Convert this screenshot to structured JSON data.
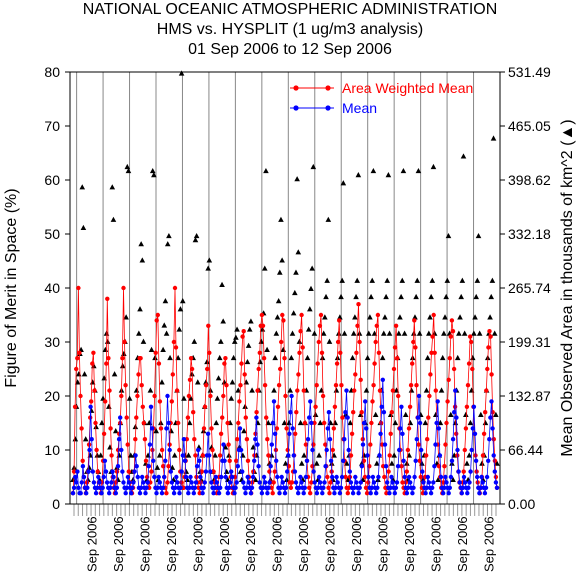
{
  "colors": {
    "awm": "#ff0000",
    "mean": "#0000ff",
    "area": "#000000",
    "grid": "#888888"
  },
  "chart_data": {
    "type": "line",
    "title": [
      "NATIONAL OCEANIC ATMOSPHERIC ADMINISTRATION",
      "HMS vs. HYSPLIT (1 ug/m3 analysis)",
      "01 Sep 2006 to 12 Sep 2006"
    ],
    "ylabel": "Figure of Merit in Space (%)",
    "y2label": "Mean Observed Area in thousands of km^2 (▲)",
    "ylim": [
      0,
      80
    ],
    "yticks": [
      "0",
      "10",
      "20",
      "30",
      "40",
      "50",
      "60",
      "70",
      "80"
    ],
    "y2lim": [
      0,
      531.49
    ],
    "y2ticks": [
      "0.00",
      "66.44",
      "132.87",
      "199.31",
      "265.74",
      "332.18",
      "398.62",
      "465.05",
      "531.49"
    ],
    "xtick_label": "Sep 2006",
    "xtick_count": 16,
    "grid": "vertical lines at day boundaries",
    "legend": {
      "position": "top-right",
      "entries": [
        "Area Weighted Mean",
        "Mean"
      ]
    },
    "series": [
      {
        "name": "Area Weighted Mean",
        "marker": "circle",
        "color": "#ff0000",
        "values": [
          2,
          6,
          18,
          25,
          27,
          40,
          28,
          20,
          14,
          8,
          5,
          3,
          2,
          4,
          6,
          11,
          16,
          19,
          26,
          28,
          21,
          15,
          10,
          6,
          4,
          3,
          2,
          4,
          8,
          13,
          19,
          26,
          38,
          27,
          21,
          14,
          9,
          5,
          3,
          2,
          4,
          6,
          10,
          13,
          15,
          20,
          27,
          40,
          30,
          22,
          16,
          11,
          6,
          4,
          3,
          2,
          3,
          6,
          12,
          16,
          20,
          24,
          27,
          27,
          22,
          18,
          15,
          12,
          8,
          5,
          4,
          3,
          4,
          6,
          10,
          14,
          20,
          28,
          34,
          35,
          26,
          19,
          14,
          10,
          7,
          5,
          3,
          2,
          4,
          7,
          11,
          15,
          19,
          24,
          30,
          40,
          29,
          21,
          15,
          10,
          6,
          4,
          3,
          3,
          5,
          8,
          12,
          16,
          20,
          23,
          27,
          25,
          17,
          12,
          9,
          5,
          4,
          3,
          2,
          4,
          6,
          9,
          14,
          18,
          22,
          25,
          33,
          28,
          20,
          14,
          10,
          6,
          4,
          3,
          2,
          3,
          5,
          9,
          13,
          16,
          20,
          26,
          27,
          22,
          15,
          11,
          8,
          5,
          3,
          2,
          3,
          5,
          8,
          12,
          15,
          19,
          22,
          26,
          31,
          32,
          24,
          16,
          12,
          8,
          5,
          3,
          2,
          4,
          6,
          9,
          13,
          17,
          21,
          25,
          28,
          33,
          35,
          33,
          27,
          22,
          16,
          12,
          9,
          6,
          4,
          3,
          2,
          4,
          6,
          10,
          14,
          18,
          22,
          25,
          30,
          35,
          34,
          27,
          20,
          14,
          10,
          7,
          4,
          3,
          4,
          6,
          9,
          13,
          17,
          21,
          24,
          28,
          32,
          35,
          29,
          21,
          15,
          11,
          8,
          5,
          3,
          2,
          4,
          7,
          11,
          15,
          18,
          22,
          26,
          30,
          33,
          35,
          28,
          20,
          15,
          11,
          7,
          5,
          3,
          2,
          4,
          6,
          10,
          14,
          18,
          22,
          26,
          30,
          34,
          28,
          22,
          16,
          12,
          8,
          5,
          3,
          2,
          3,
          5,
          9,
          13,
          17,
          21,
          24,
          28,
          33,
          37,
          30,
          23,
          17,
          12,
          8,
          5,
          3,
          2,
          4,
          7,
          11,
          15,
          19,
          22,
          26,
          30,
          33,
          35,
          28,
          21,
          15,
          11,
          7,
          5,
          3,
          2,
          3,
          6,
          9,
          13,
          17,
          21,
          25,
          29,
          33,
          27,
          20,
          14,
          10,
          7,
          4,
          3,
          2,
          4,
          6,
          10,
          14,
          18,
          22,
          26,
          30,
          34,
          29,
          22,
          16,
          11,
          8,
          5,
          3,
          2,
          3,
          5,
          9,
          12,
          16,
          20,
          24,
          28,
          31,
          35,
          28,
          21,
          15,
          11,
          7,
          5,
          3,
          2,
          4,
          7,
          11,
          15,
          19,
          23,
          27,
          31,
          34,
          32,
          25,
          18,
          13,
          9,
          6,
          4,
          3,
          2,
          4,
          6,
          10,
          14,
          18,
          22,
          26,
          31,
          30,
          25,
          18,
          13,
          9,
          6,
          4,
          3,
          2,
          3,
          5,
          9,
          13,
          17,
          21,
          25,
          29,
          32,
          31,
          24,
          17,
          12,
          8,
          5,
          3
        ]
      },
      {
        "name": "Mean",
        "marker": "circle",
        "color": "#0000ff",
        "values": [
          2,
          3,
          5,
          4,
          6,
          3,
          2,
          2,
          4,
          7,
          5,
          3,
          2,
          3,
          6,
          10,
          18,
          12,
          6,
          4,
          3,
          2,
          3,
          5,
          4,
          3,
          2,
          3,
          5,
          8,
          6,
          4,
          3,
          2,
          3,
          4,
          6,
          5,
          3,
          2,
          3,
          7,
          12,
          16,
          10,
          6,
          4,
          3,
          2,
          3,
          5,
          4,
          3,
          2,
          3,
          4,
          6,
          9,
          7,
          5,
          3,
          2,
          3,
          5,
          4,
          3,
          2,
          3,
          4,
          7,
          11,
          18,
          14,
          8,
          5,
          3,
          2,
          3,
          5,
          4,
          3,
          2,
          3,
          5,
          8,
          14,
          20,
          15,
          10,
          6,
          4,
          3,
          2,
          3,
          5,
          4,
          3,
          2,
          3,
          6,
          9,
          12,
          8,
          5,
          3,
          2,
          3,
          5,
          4,
          3,
          2,
          3,
          4,
          7,
          10,
          8,
          5,
          3,
          2,
          3,
          4,
          6,
          9,
          13,
          9,
          6,
          4,
          3,
          2,
          3,
          5,
          4,
          3,
          2,
          3,
          5,
          8,
          11,
          8,
          5,
          3,
          2,
          3,
          4,
          6,
          5,
          3,
          2,
          3,
          4,
          7,
          10,
          14,
          10,
          6,
          4,
          3,
          2,
          3,
          5,
          4,
          3,
          2,
          3,
          5,
          8,
          12,
          16,
          11,
          7,
          4,
          3,
          2,
          3,
          5,
          4,
          3,
          2,
          3,
          4,
          7,
          11,
          15,
          19,
          13,
          8,
          5,
          3,
          2,
          3,
          5,
          4,
          3,
          2,
          3,
          6,
          9,
          13,
          17,
          20,
          14,
          9,
          6,
          4,
          3,
          2,
          3,
          5,
          4,
          3,
          2,
          3,
          5,
          8,
          12,
          16,
          19,
          15,
          10,
          6,
          4,
          3,
          2,
          3,
          5,
          4,
          3,
          2,
          3,
          4,
          7,
          10,
          14,
          17,
          12,
          8,
          5,
          3,
          2,
          3,
          5,
          4,
          3,
          2,
          3,
          5,
          8,
          12,
          17,
          21,
          16,
          10,
          6,
          4,
          3,
          2,
          3,
          5,
          4,
          3,
          2,
          3,
          4,
          7,
          11,
          15,
          19,
          14,
          9,
          5,
          3,
          2,
          3,
          5,
          4,
          3,
          2,
          3,
          5,
          9,
          13,
          18,
          23,
          17,
          11,
          7,
          4,
          3,
          2,
          3,
          5,
          4,
          3,
          2,
          3,
          4,
          7,
          10,
          14,
          18,
          13,
          8,
          5,
          3,
          2,
          3,
          5,
          4,
          3,
          2,
          3,
          5,
          8,
          12,
          16,
          20,
          15,
          10,
          6,
          4,
          3,
          2,
          3,
          5,
          4,
          3,
          2,
          3,
          4,
          7,
          11,
          15,
          19,
          14,
          9,
          5,
          3,
          2,
          3,
          5,
          4,
          3,
          2,
          3,
          5,
          8,
          12,
          17,
          21,
          16,
          10,
          6,
          4,
          3,
          2,
          3,
          5,
          4,
          3,
          2,
          3,
          4,
          6,
          10,
          14,
          18,
          13,
          8,
          5,
          3,
          2,
          3,
          5,
          4,
          3,
          2,
          3,
          5,
          8,
          12,
          16,
          19,
          14,
          9,
          6,
          4,
          3
        ]
      }
    ],
    "area_series": {
      "name": "Mean Observed Area",
      "marker": "triangle",
      "color": "#000000",
      "axis": "right",
      "values": [
        30,
        45,
        80,
        120,
        150,
        160,
        185,
        190,
        390,
        340,
        160,
        80,
        40,
        30,
        45,
        60,
        115,
        150,
        170,
        140,
        95,
        60,
        40,
        30,
        60,
        100,
        130,
        155,
        190,
        210,
        200,
        120,
        70,
        40,
        390,
        350,
        160,
        90,
        45,
        30,
        60,
        100,
        140,
        170,
        185,
        200,
        230,
        415,
        410,
        130,
        60,
        40,
        30,
        60,
        95,
        140,
        180,
        210,
        240,
        320,
        300,
        200,
        100,
        50,
        30,
        60,
        100,
        140,
        190,
        410,
        405,
        180,
        90,
        45,
        30,
        60,
        100,
        150,
        190,
        220,
        250,
        210,
        320,
        330,
        180,
        90,
        45,
        30,
        60,
        100,
        140,
        180,
        215,
        240,
        530,
        250,
        130,
        60,
        40,
        30,
        60,
        100,
        130,
        160,
        180,
        200,
        325,
        330,
        150,
        70,
        40,
        30,
        60,
        90,
        120,
        150,
        175,
        290,
        300,
        140,
        70,
        40,
        30,
        60,
        100,
        130,
        155,
        180,
        200,
        270,
        225,
        150,
        70,
        40,
        30,
        60,
        100,
        130,
        150,
        180,
        200,
        205,
        215,
        140,
        70,
        40,
        30,
        60,
        90,
        120,
        150,
        175,
        195,
        215,
        225,
        140,
        70,
        40,
        30,
        60,
        100,
        140,
        175,
        200,
        215,
        235,
        290,
        410,
        190,
        100,
        50,
        30,
        60,
        100,
        140,
        180,
        210,
        230,
        250,
        285,
        350,
        300,
        190,
        100,
        50,
        30,
        60,
        100,
        140,
        180,
        210,
        235,
        260,
        285,
        400,
        310,
        200,
        100,
        50,
        30,
        60,
        100,
        140,
        180,
        215,
        240,
        265,
        290,
        415,
        210,
        110,
        50,
        30,
        60,
        100,
        140,
        180,
        210,
        230,
        255,
        275,
        350,
        200,
        100,
        50,
        30,
        60,
        100,
        140,
        180,
        210,
        230,
        255,
        275,
        395,
        210,
        110,
        50,
        30,
        60,
        100,
        140,
        180,
        210,
        230,
        255,
        275,
        405,
        210,
        110,
        50,
        30,
        60,
        100,
        140,
        180,
        210,
        230,
        255,
        275,
        410,
        210,
        110,
        50,
        30,
        60,
        100,
        140,
        180,
        210,
        230,
        255,
        275,
        405,
        210,
        110,
        50,
        30,
        60,
        100,
        140,
        180,
        210,
        230,
        255,
        275,
        410,
        210,
        110,
        50,
        30,
        60,
        100,
        140,
        180,
        210,
        230,
        255,
        275,
        410,
        210,
        110,
        50,
        30,
        60,
        100,
        140,
        180,
        210,
        230,
        255,
        275,
        415,
        210,
        110,
        50,
        30,
        60,
        100,
        140,
        180,
        210,
        230,
        255,
        275,
        330,
        210,
        110,
        50,
        30,
        60,
        100,
        140,
        180,
        210,
        230,
        255,
        275,
        428,
        210,
        110,
        50,
        30,
        60,
        100,
        140,
        180,
        210,
        230,
        255,
        275,
        330,
        210,
        110,
        50,
        30,
        60,
        100,
        140,
        180,
        210,
        230,
        255,
        275,
        450,
        210,
        110,
        50
      ]
    }
  }
}
